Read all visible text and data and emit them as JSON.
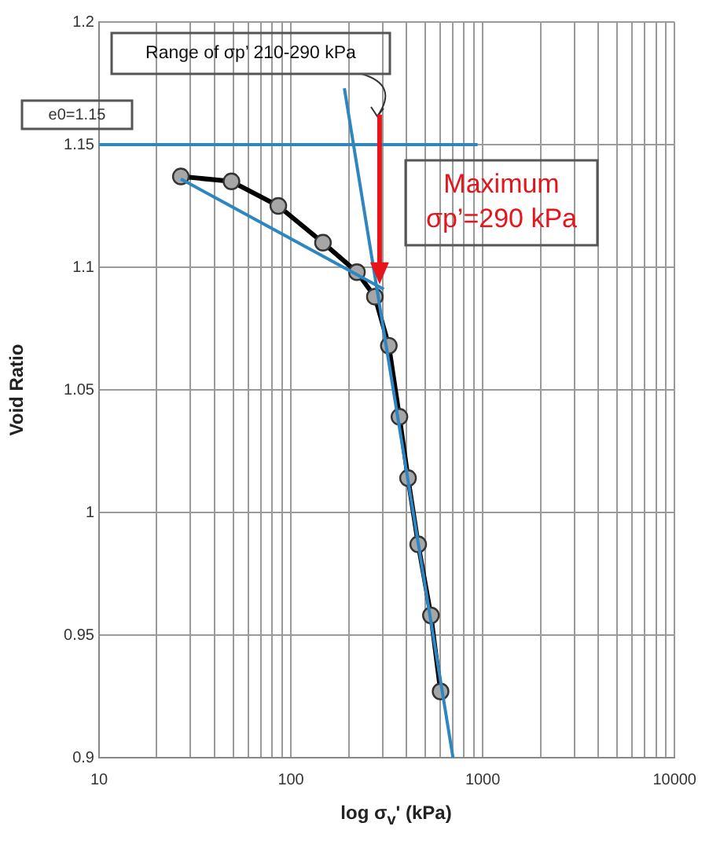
{
  "chart_data": {
    "type": "line",
    "xlabel": "log σ$_{v}$' (kPa)",
    "ylabel": "Void Ratio",
    "log": "x",
    "grid": true,
    "legend": false,
    "xlim": [
      10,
      10000
    ],
    "ylim": [
      0.9,
      1.2
    ],
    "xticks": [
      10,
      {
        "value": 20,
        "label": null
      },
      {
        "value": 30,
        "label": null
      },
      {
        "value": 40,
        "label": null
      },
      {
        "value": 50,
        "label": null
      },
      {
        "value": 60,
        "label": null
      },
      {
        "value": 70,
        "label": null
      },
      {
        "value": 80,
        "label": null
      },
      {
        "value": 90,
        "label": null
      },
      100,
      {
        "value": 200,
        "label": null
      },
      {
        "value": 300,
        "label": null
      },
      {
        "value": 400,
        "label": null
      },
      {
        "value": 500,
        "label": null
      },
      {
        "value": 600,
        "label": null
      },
      {
        "value": 700,
        "label": null
      },
      {
        "value": 800,
        "label": null
      },
      {
        "value": 900,
        "label": null
      },
      1000,
      {
        "value": 2000,
        "label": null
      },
      {
        "value": 3000,
        "label": null
      },
      {
        "value": 4000,
        "label": null
      },
      {
        "value": 5000,
        "label": null
      },
      {
        "value": 6000,
        "label": null
      },
      {
        "value": 7000,
        "label": null
      },
      {
        "value": 8000,
        "label": null
      },
      {
        "value": 9000,
        "label": null
      },
      10000
    ],
    "yticks": [
      0.9,
      0.95,
      1,
      1.05,
      1.1,
      1.15,
      1.2
    ],
    "series": [
      {
        "color": "#2e86c1",
        "marker": "none",
        "x": [
          10,
          940
        ],
        "values": [
          1.15,
          1.15
        ]
      },
      {
        "color": "#2e86c1",
        "marker": "none",
        "x": [
          26.7,
          305
        ],
        "values": [
          1.136,
          1.091
        ]
      },
      {
        "color": "#2e86c1",
        "marker": "none",
        "x": [
          190,
          700
        ],
        "values": [
          1.173,
          0.9
        ]
      },
      {
        "color": "#000000",
        "marker": "circle",
        "x": [
          26.7,
          49,
          86,
          147,
          221,
          274,
          324,
          368,
          408,
          461,
          537,
          603
        ],
        "values": [
          1.137,
          1.135,
          1.125,
          1.11,
          1.098,
          1.088,
          1.068,
          1.039,
          1.014,
          0.987,
          0.958,
          0.927
        ]
      }
    ],
    "annotations": [
      "e0=1.15",
      "Range of σp’ 210-290 kPa",
      {
        "text": "Maximum\nσp’=290 kPa",
        "x": 290,
        "y": 1.093
      }
    ]
  }
}
